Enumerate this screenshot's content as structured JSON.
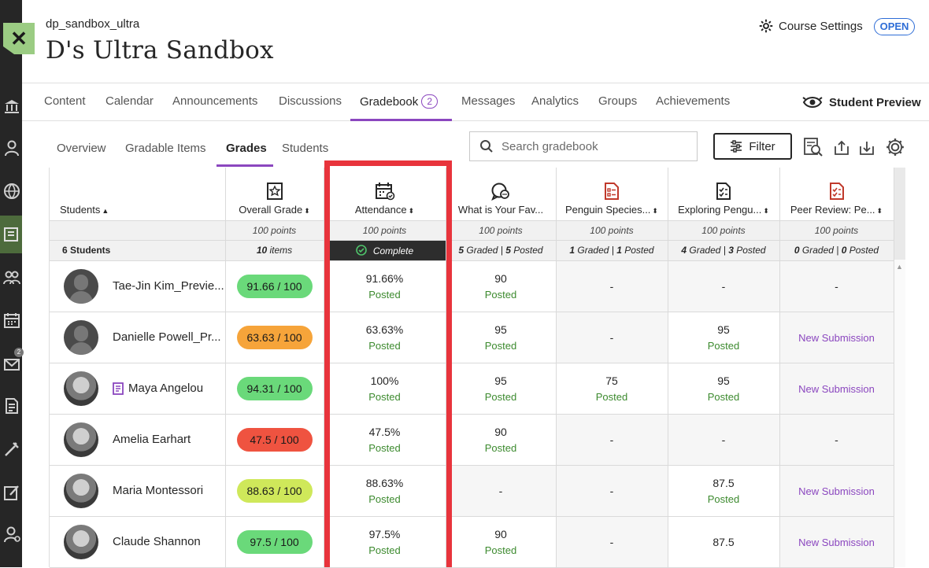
{
  "course": {
    "id": "dp_sandbox_ultra",
    "title": "D's Ultra Sandbox",
    "settings_label": "Course Settings",
    "status_badge": "OPEN"
  },
  "close_label": "✕",
  "top_nav": {
    "tabs": [
      "Content",
      "Calendar",
      "Announcements",
      "Discussions",
      "Gradebook",
      "Messages",
      "Analytics",
      "Groups",
      "Achievements"
    ],
    "gradebook_badge": "2",
    "student_preview": "Student Preview"
  },
  "left_rail": {
    "messages_badge": "2"
  },
  "sub_nav": {
    "tabs": [
      "Overview",
      "Gradable Items",
      "Grades",
      "Students"
    ]
  },
  "search": {
    "placeholder": "Search gradebook"
  },
  "filter_label": "Filter",
  "grid": {
    "columns": [
      {
        "label": "Students",
        "points": "",
        "stats": "6 Students",
        "icon": "none"
      },
      {
        "label": "Overall Grade",
        "points": "100 points",
        "stats_b1": "10",
        "stats_t1": " items",
        "icon": "overall-grade-icon"
      },
      {
        "label": "Attendance",
        "points": "100 points",
        "stats": "Complete",
        "icon": "attendance-icon"
      },
      {
        "label": "What is Your Fav...",
        "points": "100 points",
        "stats_b1": "5",
        "stats_t1": " Graded | ",
        "stats_b2": "5",
        "stats_t2": " Posted",
        "icon": "discussion-icon"
      },
      {
        "label": "Penguin Species...",
        "points": "100 points",
        "stats_b1": "1",
        "stats_t1": " Graded | ",
        "stats_b2": "1",
        "stats_t2": " Posted",
        "icon": "assignment-icon"
      },
      {
        "label": "Exploring Pengu...",
        "points": "100 points",
        "stats_b1": "4",
        "stats_t1": " Graded | ",
        "stats_b2": "3",
        "stats_t2": " Posted",
        "icon": "test-icon"
      },
      {
        "label": "Peer Review: Pe...",
        "points": "100 points",
        "stats_b1": "0",
        "stats_t1": " Graded | ",
        "stats_b2": "0",
        "stats_t2": " Posted",
        "icon": "peer-review-icon"
      }
    ],
    "rows": [
      {
        "name": "Tae-Jin Kim_Previe...",
        "overall": "91.66 / 100",
        "overall_color": "#6ad97a",
        "attendance": "91.66%",
        "att_status": "Posted",
        "fav": "90",
        "fav_status": "Posted",
        "species": "-",
        "exploring": "-",
        "exploring_status": "",
        "peer": "-"
      },
      {
        "name": "Danielle Powell_Pr...",
        "overall": "63.63 / 100",
        "overall_color": "#f6a43a",
        "attendance": "63.63%",
        "att_status": "Posted",
        "fav": "95",
        "fav_status": "Posted",
        "species": "-",
        "exploring": "95",
        "exploring_status": "Posted",
        "peer": "New Submission"
      },
      {
        "name": "Maya Angelou",
        "overall": "94.31 / 100",
        "overall_color": "#6ad97a",
        "attendance": "100%",
        "att_status": "Posted",
        "fav": "95",
        "fav_status": "Posted",
        "species": "75",
        "species_status": "Posted",
        "exploring": "95",
        "exploring_status": "Posted",
        "peer": "New Submission"
      },
      {
        "name": "Amelia Earhart",
        "overall": "47.5 / 100",
        "overall_color": "#ef5340",
        "attendance": "47.5%",
        "att_status": "Posted",
        "fav": "90",
        "fav_status": "Posted",
        "species": "-",
        "exploring": "-",
        "exploring_status": "",
        "peer": "-"
      },
      {
        "name": "Maria Montessori",
        "overall": "88.63 / 100",
        "overall_color": "#cfe85a",
        "attendance": "88.63%",
        "att_status": "Posted",
        "fav": "-",
        "fav_status": "",
        "species": "-",
        "exploring": "87.5",
        "exploring_status": "Posted",
        "peer": "New Submission"
      },
      {
        "name": "Claude Shannon",
        "overall": "97.5 / 100",
        "overall_color": "#6ad97a",
        "attendance": "97.5%",
        "att_status": "Posted",
        "fav": "90",
        "fav_status": "Posted",
        "species": "-",
        "exploring": "87.5",
        "exploring_status": "",
        "peer": "New Submission"
      }
    ]
  },
  "colors": {
    "accent": "#8b47bf",
    "highlight_frame": "#e8343c",
    "posted": "#3c8a2e",
    "link_blue": "#2e6dd6"
  }
}
